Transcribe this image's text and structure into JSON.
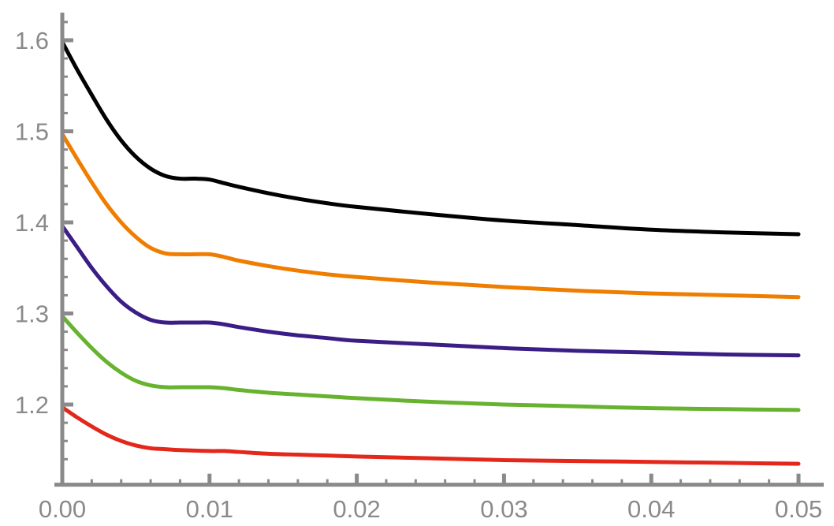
{
  "chart_data": {
    "type": "line",
    "title": "",
    "xlabel": "",
    "ylabel": "",
    "xlim": [
      0.0,
      0.05
    ],
    "ylim": [
      1.13,
      1.63
    ],
    "x_origin": 0.0,
    "y_origin": 1.112,
    "grid": false,
    "legend": "none",
    "x_ticks": [
      {
        "value": 0.0,
        "label": "0.00"
      },
      {
        "value": 0.01,
        "label": "0.01"
      },
      {
        "value": 0.02,
        "label": "0.02"
      },
      {
        "value": 0.03,
        "label": "0.03"
      },
      {
        "value": 0.04,
        "label": "0.04"
      },
      {
        "value": 0.05,
        "label": "0.05"
      }
    ],
    "y_ticks": [
      {
        "value": 1.2,
        "label": "1.2"
      },
      {
        "value": 1.3,
        "label": "1.3"
      },
      {
        "value": 1.4,
        "label": "1.4"
      },
      {
        "value": 1.5,
        "label": "1.5"
      },
      {
        "value": 1.6,
        "label": "1.6"
      }
    ],
    "series": [
      {
        "color": "#000000",
        "points": [
          [
            0.0,
            1.598
          ],
          [
            0.001,
            1.568
          ],
          [
            0.002,
            1.54
          ],
          [
            0.003,
            1.513
          ],
          [
            0.004,
            1.49
          ],
          [
            0.005,
            1.472
          ],
          [
            0.006,
            1.459
          ],
          [
            0.007,
            1.451
          ],
          [
            0.008,
            1.448
          ],
          [
            0.009,
            1.448
          ],
          [
            0.01,
            1.447
          ],
          [
            0.011,
            1.443
          ],
          [
            0.012,
            1.439
          ],
          [
            0.014,
            1.432
          ],
          [
            0.016,
            1.426
          ],
          [
            0.018,
            1.421
          ],
          [
            0.02,
            1.417
          ],
          [
            0.025,
            1.409
          ],
          [
            0.03,
            1.402
          ],
          [
            0.035,
            1.397
          ],
          [
            0.04,
            1.392
          ],
          [
            0.045,
            1.389
          ],
          [
            0.05,
            1.387
          ]
        ]
      },
      {
        "color": "#ef7d00",
        "points": [
          [
            0.0,
            1.497
          ],
          [
            0.001,
            1.47
          ],
          [
            0.002,
            1.444
          ],
          [
            0.003,
            1.42
          ],
          [
            0.004,
            1.4
          ],
          [
            0.005,
            1.384
          ],
          [
            0.006,
            1.372
          ],
          [
            0.007,
            1.366
          ],
          [
            0.008,
            1.365
          ],
          [
            0.009,
            1.365
          ],
          [
            0.01,
            1.365
          ],
          [
            0.011,
            1.362
          ],
          [
            0.012,
            1.358
          ],
          [
            0.014,
            1.352
          ],
          [
            0.016,
            1.347
          ],
          [
            0.018,
            1.343
          ],
          [
            0.02,
            1.34
          ],
          [
            0.025,
            1.334
          ],
          [
            0.03,
            1.329
          ],
          [
            0.035,
            1.325
          ],
          [
            0.04,
            1.322
          ],
          [
            0.045,
            1.32
          ],
          [
            0.05,
            1.318
          ]
        ]
      },
      {
        "color": "#3b1d86",
        "points": [
          [
            0.0,
            1.396
          ],
          [
            0.001,
            1.373
          ],
          [
            0.002,
            1.35
          ],
          [
            0.003,
            1.33
          ],
          [
            0.004,
            1.313
          ],
          [
            0.005,
            1.301
          ],
          [
            0.006,
            1.293
          ],
          [
            0.007,
            1.29
          ],
          [
            0.008,
            1.29
          ],
          [
            0.009,
            1.29
          ],
          [
            0.01,
            1.29
          ],
          [
            0.011,
            1.288
          ],
          [
            0.012,
            1.285
          ],
          [
            0.014,
            1.28
          ],
          [
            0.016,
            1.276
          ],
          [
            0.018,
            1.273
          ],
          [
            0.02,
            1.27
          ],
          [
            0.025,
            1.266
          ],
          [
            0.03,
            1.262
          ],
          [
            0.035,
            1.259
          ],
          [
            0.04,
            1.257
          ],
          [
            0.045,
            1.255
          ],
          [
            0.05,
            1.254
          ]
        ]
      },
      {
        "color": "#67b22f",
        "points": [
          [
            0.0,
            1.297
          ],
          [
            0.001,
            1.279
          ],
          [
            0.002,
            1.262
          ],
          [
            0.003,
            1.247
          ],
          [
            0.004,
            1.235
          ],
          [
            0.005,
            1.226
          ],
          [
            0.006,
            1.221
          ],
          [
            0.007,
            1.219
          ],
          [
            0.008,
            1.219
          ],
          [
            0.009,
            1.219
          ],
          [
            0.01,
            1.219
          ],
          [
            0.011,
            1.218
          ],
          [
            0.012,
            1.216
          ],
          [
            0.014,
            1.213
          ],
          [
            0.016,
            1.211
          ],
          [
            0.018,
            1.209
          ],
          [
            0.02,
            1.207
          ],
          [
            0.025,
            1.203
          ],
          [
            0.03,
            1.2
          ],
          [
            0.035,
            1.198
          ],
          [
            0.04,
            1.196
          ],
          [
            0.045,
            1.195
          ],
          [
            0.05,
            1.194
          ]
        ]
      },
      {
        "color": "#e3271b",
        "points": [
          [
            0.0,
            1.197
          ],
          [
            0.001,
            1.186
          ],
          [
            0.002,
            1.176
          ],
          [
            0.003,
            1.167
          ],
          [
            0.004,
            1.16
          ],
          [
            0.005,
            1.155
          ],
          [
            0.006,
            1.152
          ],
          [
            0.007,
            1.151
          ],
          [
            0.008,
            1.15
          ],
          [
            0.01,
            1.149
          ],
          [
            0.011,
            1.149
          ],
          [
            0.012,
            1.148
          ],
          [
            0.014,
            1.146
          ],
          [
            0.016,
            1.145
          ],
          [
            0.018,
            1.144
          ],
          [
            0.02,
            1.143
          ],
          [
            0.025,
            1.141
          ],
          [
            0.03,
            1.139
          ],
          [
            0.035,
            1.138
          ],
          [
            0.04,
            1.137
          ],
          [
            0.045,
            1.136
          ],
          [
            0.05,
            1.135
          ]
        ]
      }
    ]
  }
}
